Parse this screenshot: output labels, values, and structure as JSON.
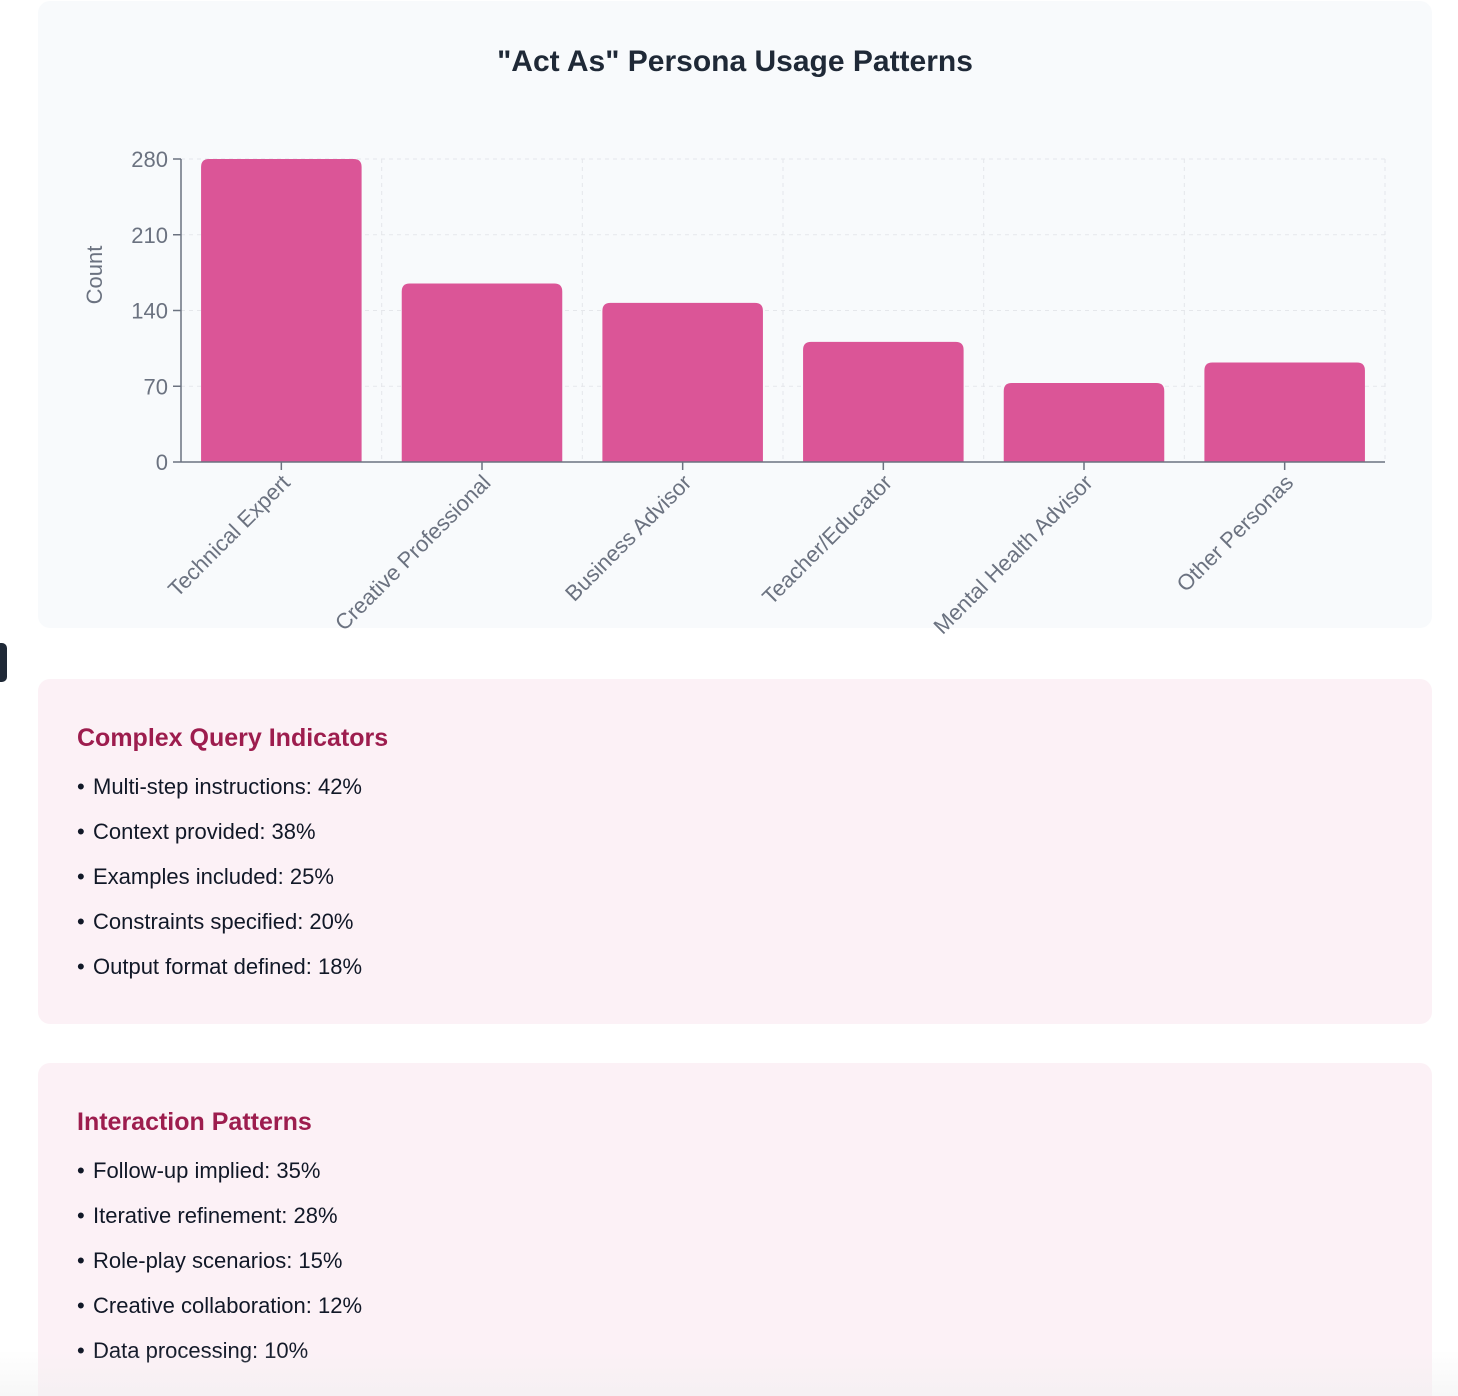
{
  "chart_data": {
    "type": "bar",
    "title": "\"Act As\" Persona Usage Patterns",
    "xlabel": "",
    "ylabel": "Count",
    "categories": [
      "Technical Expert",
      "Creative Professional",
      "Business Advisor",
      "Teacher/Educator",
      "Mental Health Advisor",
      "Other Personas"
    ],
    "values": [
      280,
      165,
      147,
      111,
      73,
      92
    ],
    "ylim": [
      0,
      280
    ],
    "yticks": [
      0,
      70,
      140,
      210,
      280
    ],
    "grid": true,
    "bar_color": "#db5597"
  },
  "cards": [
    {
      "heading": "Complex Query Indicators",
      "items": [
        "Multi-step instructions: 42%",
        "Context provided: 38%",
        "Examples included: 25%",
        "Constraints specified: 20%",
        "Output format defined: 18%"
      ]
    },
    {
      "heading": "Interaction Patterns",
      "items": [
        "Follow-up implied: 35%",
        "Iterative refinement: 28%",
        "Role-play scenarios: 15%",
        "Creative collaboration: 12%",
        "Data processing: 10%"
      ]
    }
  ],
  "colors": {
    "heading": "#9d1d4e",
    "card_background": "#fcf1f6",
    "chart_background": "#f8fafc"
  }
}
